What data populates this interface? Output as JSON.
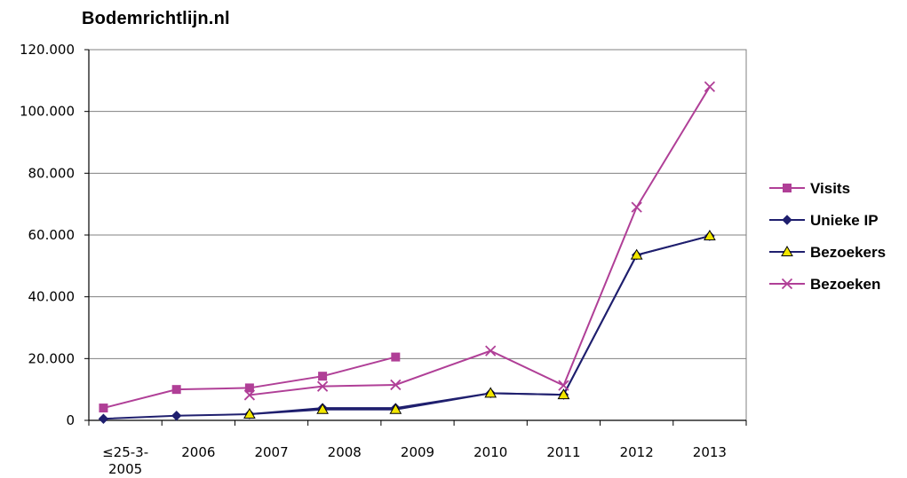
{
  "chart_data": {
    "type": "line",
    "title": "Bodemrichtlijn.nl",
    "xlabel": "",
    "ylabel": "",
    "categories": [
      "≤25-3-2005",
      "2006",
      "2007",
      "2008",
      "2009",
      "2010",
      "2011",
      "2012",
      "2013"
    ],
    "category_lines": [
      [
        "≤25-3-",
        "2005"
      ],
      [
        "2006"
      ],
      [
        "2007"
      ],
      [
        "2008"
      ],
      [
        "2009"
      ],
      [
        "2010"
      ],
      [
        "2011"
      ],
      [
        "2012"
      ],
      [
        "2013"
      ]
    ],
    "ylim": [
      0,
      120000
    ],
    "yticks": [
      0,
      20000,
      40000,
      60000,
      80000,
      100000,
      120000
    ],
    "ytick_labels": [
      "0",
      "20.000",
      "40.000",
      "60.000",
      "80.000",
      "100.000",
      "120.000"
    ],
    "grid": true,
    "legend_position": "right",
    "series": [
      {
        "name": "Visits",
        "color": "#b03f97",
        "marker": "square",
        "points": [
          {
            "x": 0.2,
            "y": 4000
          },
          {
            "x": 1.2,
            "y": 10000
          },
          {
            "x": 2.2,
            "y": 10500
          },
          {
            "x": 3.2,
            "y": 14300
          },
          {
            "x": 4.2,
            "y": 20500
          }
        ]
      },
      {
        "name": "Unieke IP",
        "color": "#1f1f6e",
        "marker": "diamond",
        "points": [
          {
            "x": 0.2,
            "y": 500
          },
          {
            "x": 1.2,
            "y": 1500
          },
          {
            "x": 2.2,
            "y": 2000
          },
          {
            "x": 3.2,
            "y": 4000
          },
          {
            "x": 4.2,
            "y": 4000
          },
          {
            "x": 5.5,
            "y": 8800
          },
          {
            "x": 6.5,
            "y": 8300
          },
          {
            "x": 7.5,
            "y": 53500
          },
          {
            "x": 8.5,
            "y": 59700
          }
        ]
      },
      {
        "name": "Bezoekers",
        "color": "#1f1f6e",
        "marker": "triangle",
        "marker_fill": "#f2e600",
        "points": [
          {
            "x": 2.2,
            "y": 2000
          },
          {
            "x": 3.2,
            "y": 3500
          },
          {
            "x": 4.2,
            "y": 3500
          },
          {
            "x": 5.5,
            "y": 8800
          },
          {
            "x": 6.5,
            "y": 8300
          },
          {
            "x": 7.5,
            "y": 53500
          },
          {
            "x": 8.5,
            "y": 59700
          }
        ]
      },
      {
        "name": "Bezoeken",
        "color": "#b03f97",
        "marker": "x",
        "points": [
          {
            "x": 2.2,
            "y": 8200
          },
          {
            "x": 3.2,
            "y": 11000
          },
          {
            "x": 4.2,
            "y": 11500
          },
          {
            "x": 5.5,
            "y": 22500
          },
          {
            "x": 6.5,
            "y": 11300
          },
          {
            "x": 7.5,
            "y": 69000
          },
          {
            "x": 8.5,
            "y": 108000
          }
        ]
      }
    ]
  }
}
